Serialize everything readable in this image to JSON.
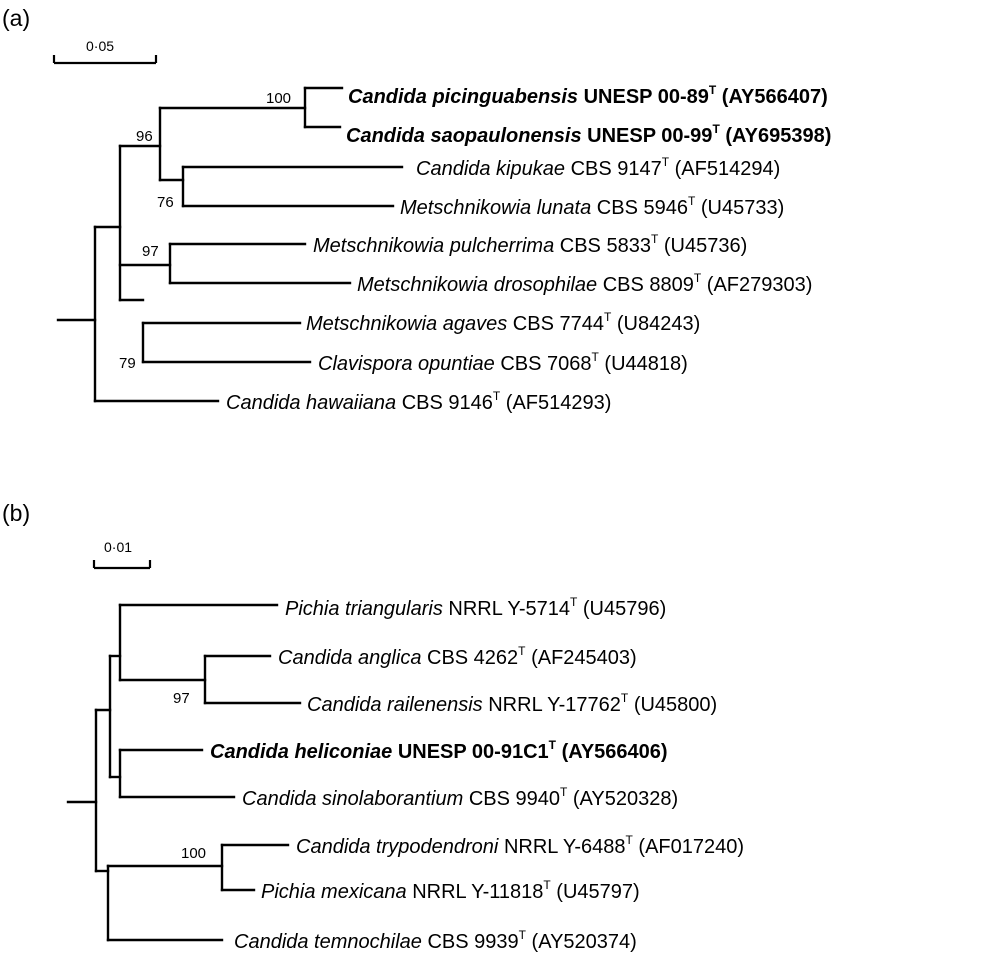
{
  "panels": [
    {
      "id": "a",
      "label": "(a)",
      "scale_label": "0·05",
      "supports": [
        "100",
        "96",
        "76",
        "97",
        "79"
      ],
      "taxa": [
        {
          "genus_species": "Candida picinguabensis",
          "strain": "UNESP 00-89",
          "sup": "T",
          "accession": "(AY566407)",
          "bold": true
        },
        {
          "genus_species": "Candida saopaulonensis",
          "strain": "UNESP 00-99",
          "sup": "T",
          "accession": "(AY695398)",
          "bold": true
        },
        {
          "genus_species": "Candida kipukae",
          "strain": "CBS 9147",
          "sup": "T",
          "accession": "(AF514294)",
          "bold": false
        },
        {
          "genus_species": "Metschnikowia lunata",
          "strain": "CBS 5946",
          "sup": "T",
          "accession": "(U45733)",
          "bold": false
        },
        {
          "genus_species": "Metschnikowia pulcherrima",
          "strain": "CBS 5833",
          "sup": "T",
          "accession": "(U45736)",
          "bold": false
        },
        {
          "genus_species": "Metschnikowia drosophilae",
          "strain": "CBS 8809",
          "sup": "T",
          "accession": "(AF279303)",
          "bold": false
        },
        {
          "genus_species": "Metschnikowia agaves",
          "strain": "CBS 7744",
          "sup": "T",
          "accession": "(U84243)",
          "bold": false
        },
        {
          "genus_species": "Clavispora opuntiae",
          "strain": "CBS 7068",
          "sup": "T",
          "accession": "(U44818)",
          "bold": false
        },
        {
          "genus_species": "Candida hawaiiana",
          "strain": "CBS 9146",
          "sup": "T",
          "accession": "(AF514293)",
          "bold": false
        }
      ]
    },
    {
      "id": "b",
      "label": "(b)",
      "scale_label": "0·01",
      "supports": [
        "97",
        "100"
      ],
      "taxa": [
        {
          "genus_species": "Pichia triangularis",
          "strain": "NRRL Y-5714",
          "sup": "T",
          "accession": "(U45796)",
          "bold": false
        },
        {
          "genus_species": "Candida anglica",
          "strain": "CBS 4262",
          "sup": "T",
          "accession": "(AF245403)",
          "bold": false
        },
        {
          "genus_species": "Candida railenensis",
          "strain": "NRRL Y-17762",
          "sup": "T",
          "accession": "(U45800)",
          "bold": false
        },
        {
          "genus_species": "Candida heliconiae",
          "strain": "UNESP 00-91C1",
          "sup": "T",
          "accession": "(AY566406)",
          "bold": true
        },
        {
          "genus_species": "Candida sinolaborantium",
          "strain": "CBS 9940",
          "sup": "T",
          "accession": "(AY520328)",
          "bold": false
        },
        {
          "genus_species": "Candida trypodendroni",
          "strain": "NRRL Y-6488",
          "sup": "T",
          "accession": "(AF017240)",
          "bold": false
        },
        {
          "genus_species": "Pichia mexicana",
          "strain": "NRRL Y-11818",
          "sup": "T",
          "accession": "(U45797)",
          "bold": false
        },
        {
          "genus_species": "Candida temnochilae",
          "strain": "CBS 9939",
          "sup": "T",
          "accession": "(AY520374)",
          "bold": false
        }
      ]
    }
  ]
}
